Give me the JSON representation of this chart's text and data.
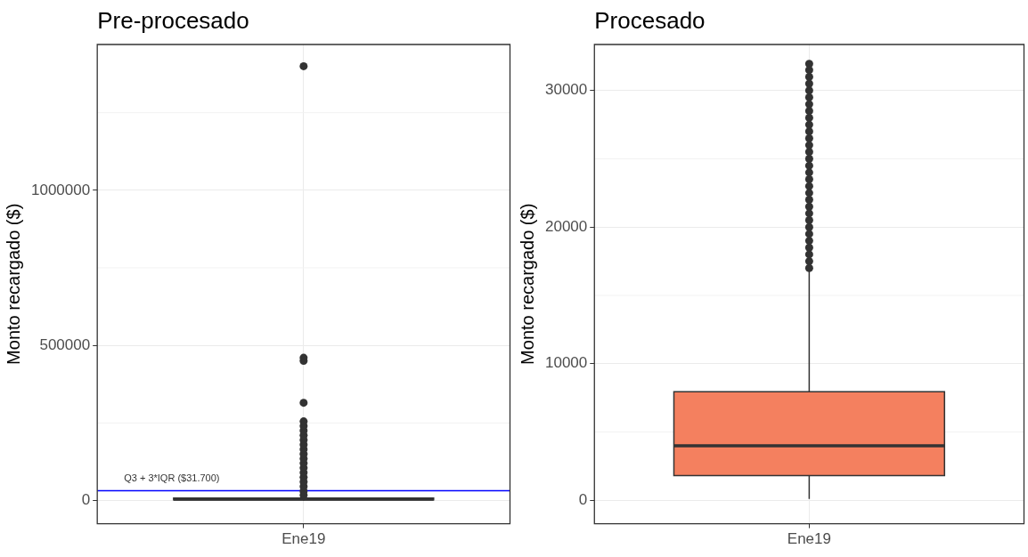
{
  "chart_data": [
    {
      "type": "box",
      "title": "Pre-procesado",
      "ylabel": "Monto recargado ($)",
      "categories": [
        "Ene19"
      ],
      "ylim": [
        -75000,
        1470000
      ],
      "yticks": [
        0,
        500000,
        1000000
      ],
      "grid": true,
      "series": [
        {
          "color": "#ffffff",
          "boxes": [
            {
              "low": 100,
              "q1": 1810,
              "median": 3985,
              "q3": 7950,
              "high": 16850,
              "outliers": [
                17000,
                30000,
                45000,
                60000,
                75000,
                90000,
                105000,
                120000,
                135000,
                150000,
                165000,
                180000,
                195000,
                210000,
                225000,
                240000,
                255000,
                315000,
                450000,
                460000,
                1400000
              ]
            }
          ]
        }
      ],
      "ref_lines": [
        {
          "axis": "y",
          "value": 31700,
          "label": "Q3 + 3*IQR ($31.700)",
          "color": "#0000ff"
        }
      ]
    },
    {
      "type": "box",
      "title": "Procesado",
      "ylabel": "Monto recargado ($)",
      "categories": [
        "Ene19"
      ],
      "ylim": [
        -1720,
        33370
      ],
      "yticks": [
        0,
        10000,
        20000,
        30000
      ],
      "grid": true,
      "series": [
        {
          "color": "#f4805f",
          "boxes": [
            {
              "low": 100,
              "q1": 1810,
              "median": 3985,
              "q3": 7950,
              "high": 16850,
              "outliers": [
                17000,
                17500,
                18000,
                18500,
                19000,
                19500,
                20000,
                20500,
                21000,
                21500,
                22000,
                22500,
                23000,
                23500,
                24000,
                24500,
                25000,
                25500,
                26000,
                26500,
                27000,
                27500,
                28000,
                28500,
                29000,
                29500,
                30000,
                30500,
                31000,
                31500,
                31950
              ]
            }
          ]
        }
      ]
    }
  ]
}
